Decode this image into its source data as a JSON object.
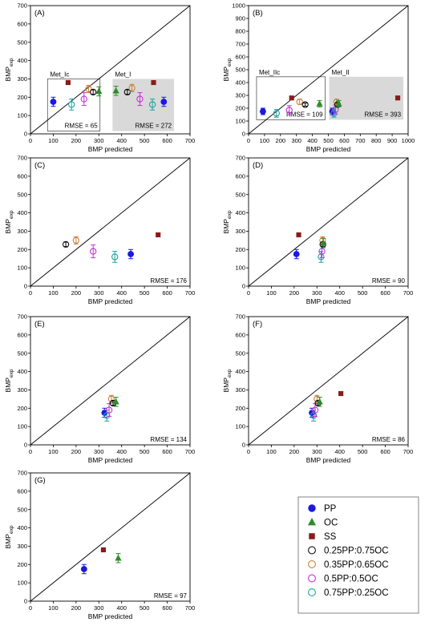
{
  "chart_data": [
    {
      "type": "scatter",
      "panel": "(A)",
      "xlabel": "BMP predicted",
      "ylabel": "BMP",
      "ylabel_sub": "exp",
      "xlim": [
        0,
        700
      ],
      "ylim": [
        0,
        700
      ],
      "xticks": [
        0,
        100,
        200,
        300,
        400,
        500,
        600,
        700
      ],
      "yticks": [
        0,
        100,
        200,
        300,
        400,
        500,
        600,
        700
      ],
      "identity_line": true,
      "groups": [
        {
          "label": "Met_Ic",
          "rmse": "RMSE = 65",
          "shaded": false,
          "x_range": [
            75,
            305
          ],
          "y_range": [
            15,
            300
          ]
        },
        {
          "label": "Met_I",
          "rmse": "RMSE = 272",
          "shaded": true,
          "x_range": [
            360,
            630
          ],
          "y_range": [
            15,
            300
          ]
        }
      ],
      "points": [
        {
          "series": "PP",
          "x": 100,
          "y": 175,
          "err": 25
        },
        {
          "series": "SS",
          "x": 165,
          "y": 280,
          "err": 10
        },
        {
          "series": "0.75PP:0.25OC",
          "x": 180,
          "y": 160,
          "err": 30
        },
        {
          "series": "0.5PP:0.5OC",
          "x": 235,
          "y": 190,
          "err": 35
        },
        {
          "series": "0.35PP:0.65OC",
          "x": 255,
          "y": 245,
          "err": 20
        },
        {
          "series": "0.25PP:0.75OC",
          "x": 275,
          "y": 228,
          "err": 12
        },
        {
          "series": "OC",
          "x": 300,
          "y": 232,
          "err": 25
        },
        {
          "series": "OC",
          "x": 375,
          "y": 235,
          "err": 25
        },
        {
          "series": "0.25PP:0.75OC",
          "x": 425,
          "y": 228,
          "err": 12
        },
        {
          "series": "0.35PP:0.65OC",
          "x": 445,
          "y": 250,
          "err": 20
        },
        {
          "series": "0.5PP:0.5OC",
          "x": 480,
          "y": 190,
          "err": 35
        },
        {
          "series": "SS",
          "x": 540,
          "y": 280,
          "err": 10
        },
        {
          "series": "0.75PP:0.25OC",
          "x": 535,
          "y": 160,
          "err": 30
        },
        {
          "series": "PP",
          "x": 585,
          "y": 175,
          "err": 25
        }
      ]
    },
    {
      "type": "scatter",
      "panel": "(B)",
      "xlabel": "BMP predicted",
      "ylabel": "BMP",
      "ylabel_sub": "exp",
      "xlim": [
        0,
        1000
      ],
      "ylim": [
        0,
        1000
      ],
      "xticks": [
        0,
        100,
        200,
        300,
        400,
        500,
        600,
        700,
        800,
        900,
        1000
      ],
      "yticks": [
        0,
        100,
        200,
        300,
        400,
        500,
        600,
        700,
        800,
        900,
        1000
      ],
      "identity_line": true,
      "groups": [
        {
          "label": "Met_IIc",
          "rmse": "RMSE = 109",
          "shaded": false,
          "x_range": [
            50,
            480
          ],
          "y_range": [
            110,
            445
          ]
        },
        {
          "label": "Met_II",
          "rmse": "RMSE = 393",
          "shaded": true,
          "x_range": [
            505,
            970
          ],
          "y_range": [
            110,
            445
          ]
        }
      ],
      "points": [
        {
          "series": "PP",
          "x": 90,
          "y": 175,
          "err": 25
        },
        {
          "series": "0.75PP:0.25OC",
          "x": 175,
          "y": 160,
          "err": 30
        },
        {
          "series": "0.5PP:0.5OC",
          "x": 255,
          "y": 185,
          "err": 35
        },
        {
          "series": "SS",
          "x": 270,
          "y": 280,
          "err": 10
        },
        {
          "series": "0.35PP:0.65OC",
          "x": 320,
          "y": 250,
          "err": 20
        },
        {
          "series": "0.25PP:0.75OC",
          "x": 355,
          "y": 228,
          "err": 12
        },
        {
          "series": "OC",
          "x": 445,
          "y": 235,
          "err": 25
        },
        {
          "series": "PP",
          "x": 525,
          "y": 175,
          "err": 25
        },
        {
          "series": "0.75PP:0.25OC",
          "x": 535,
          "y": 160,
          "err": 30
        },
        {
          "series": "0.5PP:0.5OC",
          "x": 545,
          "y": 190,
          "err": 35
        },
        {
          "series": "0.35PP:0.65OC",
          "x": 552,
          "y": 250,
          "err": 20
        },
        {
          "series": "0.25PP:0.75OC",
          "x": 558,
          "y": 228,
          "err": 12
        },
        {
          "series": "OC",
          "x": 565,
          "y": 235,
          "err": 25
        },
        {
          "series": "SS",
          "x": 935,
          "y": 280,
          "err": 10
        }
      ]
    },
    {
      "type": "scatter",
      "panel": "(C)",
      "xlabel": "BMP predicted",
      "ylabel": "BMP",
      "ylabel_sub": "exp",
      "xlim": [
        0,
        700
      ],
      "ylim": [
        0,
        700
      ],
      "xticks": [
        0,
        100,
        200,
        300,
        400,
        500,
        600,
        700
      ],
      "yticks": [
        0,
        100,
        200,
        300,
        400,
        500,
        600,
        700
      ],
      "identity_line": true,
      "rmse": "RMSE = 176",
      "points": [
        {
          "series": "0.25PP:0.75OC",
          "x": 155,
          "y": 228,
          "err": 12
        },
        {
          "series": "0.35PP:0.65OC",
          "x": 200,
          "y": 250,
          "err": 20
        },
        {
          "series": "0.5PP:0.5OC",
          "x": 275,
          "y": 190,
          "err": 35
        },
        {
          "series": "0.75PP:0.25OC",
          "x": 370,
          "y": 160,
          "err": 30
        },
        {
          "series": "PP",
          "x": 440,
          "y": 175,
          "err": 25
        },
        {
          "series": "SS",
          "x": 560,
          "y": 280,
          "err": 10
        }
      ]
    },
    {
      "type": "scatter",
      "panel": "(D)",
      "xlabel": "BMP predicted",
      "ylabel": "BMP",
      "ylabel_sub": "exp",
      "xlim": [
        0,
        700
      ],
      "ylim": [
        0,
        700
      ],
      "xticks": [
        0,
        100,
        200,
        300,
        400,
        500,
        600,
        700
      ],
      "yticks": [
        0,
        100,
        200,
        300,
        400,
        500,
        600,
        700
      ],
      "identity_line": true,
      "rmse": "RMSE = 90",
      "points": [
        {
          "series": "PP",
          "x": 210,
          "y": 175,
          "err": 25
        },
        {
          "series": "SS",
          "x": 220,
          "y": 280,
          "err": 10
        },
        {
          "series": "0.75PP:0.25OC",
          "x": 318,
          "y": 160,
          "err": 30
        },
        {
          "series": "0.5PP:0.5OC",
          "x": 322,
          "y": 190,
          "err": 35
        },
        {
          "series": "0.35PP:0.65OC",
          "x": 325,
          "y": 250,
          "err": 20
        },
        {
          "series": "0.25PP:0.75OC",
          "x": 326,
          "y": 228,
          "err": 12
        },
        {
          "series": "OC",
          "x": 328,
          "y": 235,
          "err": 25
        }
      ]
    },
    {
      "type": "scatter",
      "panel": "(E)",
      "xlabel": "BMP predicted",
      "ylabel": "BMP",
      "ylabel_sub": "exp",
      "xlim": [
        0,
        700
      ],
      "ylim": [
        0,
        700
      ],
      "xticks": [
        0,
        100,
        200,
        300,
        400,
        500,
        600,
        700
      ],
      "yticks": [
        0,
        100,
        200,
        300,
        400,
        500,
        600,
        700
      ],
      "identity_line": true,
      "rmse": "RMSE = 134",
      "points": [
        {
          "series": "PP",
          "x": 325,
          "y": 175,
          "err": 25
        },
        {
          "series": "0.75PP:0.25OC",
          "x": 335,
          "y": 160,
          "err": 30
        },
        {
          "series": "0.5PP:0.5OC",
          "x": 345,
          "y": 190,
          "err": 35
        },
        {
          "series": "0.35PP:0.65OC",
          "x": 355,
          "y": 250,
          "err": 20
        },
        {
          "series": "0.25PP:0.75OC",
          "x": 362,
          "y": 228,
          "err": 12
        },
        {
          "series": "OC",
          "x": 375,
          "y": 235,
          "err": 25
        }
      ]
    },
    {
      "type": "scatter",
      "panel": "(F)",
      "xlabel": "BMP predicted",
      "ylabel": "BMP",
      "ylabel_sub": "exp",
      "xlim": [
        0,
        700
      ],
      "ylim": [
        0,
        700
      ],
      "xticks": [
        0,
        100,
        200,
        300,
        400,
        500,
        600,
        700
      ],
      "yticks": [
        0,
        100,
        200,
        300,
        400,
        500,
        600,
        700
      ],
      "identity_line": true,
      "rmse": "RMSE = 86",
      "points": [
        {
          "series": "PP",
          "x": 278,
          "y": 175,
          "err": 25
        },
        {
          "series": "0.75PP:0.25OC",
          "x": 285,
          "y": 160,
          "err": 30
        },
        {
          "series": "0.5PP:0.5OC",
          "x": 292,
          "y": 190,
          "err": 35
        },
        {
          "series": "0.35PP:0.65OC",
          "x": 300,
          "y": 250,
          "err": 20
        },
        {
          "series": "0.25PP:0.75OC",
          "x": 305,
          "y": 228,
          "err": 12
        },
        {
          "series": "OC",
          "x": 312,
          "y": 235,
          "err": 25
        },
        {
          "series": "SS",
          "x": 405,
          "y": 280,
          "err": 10
        }
      ]
    },
    {
      "type": "scatter",
      "panel": "(G)",
      "xlabel": "BMP predicted",
      "ylabel": "BMP",
      "ylabel_sub": "exp",
      "xlim": [
        0,
        700
      ],
      "ylim": [
        0,
        700
      ],
      "xticks": [
        0,
        100,
        200,
        300,
        400,
        500,
        600,
        700
      ],
      "yticks": [
        0,
        100,
        200,
        300,
        400,
        500,
        600,
        700
      ],
      "identity_line": true,
      "rmse": "RMSE = 97",
      "points": [
        {
          "series": "PP",
          "x": 235,
          "y": 175,
          "err": 25
        },
        {
          "series": "SS",
          "x": 320,
          "y": 280,
          "err": 10
        },
        {
          "series": "OC",
          "x": 385,
          "y": 235,
          "err": 25
        }
      ]
    }
  ],
  "legend": [
    {
      "name": "PP",
      "marker": "circle-filled",
      "color": "#1a1adb"
    },
    {
      "name": "OC",
      "marker": "triangle-filled",
      "color": "#2e8b2e"
    },
    {
      "name": "SS",
      "marker": "square-filled",
      "color": "#8b1a1a"
    },
    {
      "name": "0.25PP:0.75OC",
      "marker": "circle-open",
      "color": "#111111"
    },
    {
      "name": "0.35PP:0.65OC",
      "marker": "circle-open",
      "color": "#c8823a"
    },
    {
      "name": "0.5PP:0.5OC",
      "marker": "circle-open",
      "color": "#c233d6"
    },
    {
      "name": "0.75PP:0.25OC",
      "marker": "circle-open",
      "color": "#1fa0a0"
    }
  ],
  "colors": {
    "shade": "#d9d9d9",
    "axis": "#000000"
  }
}
